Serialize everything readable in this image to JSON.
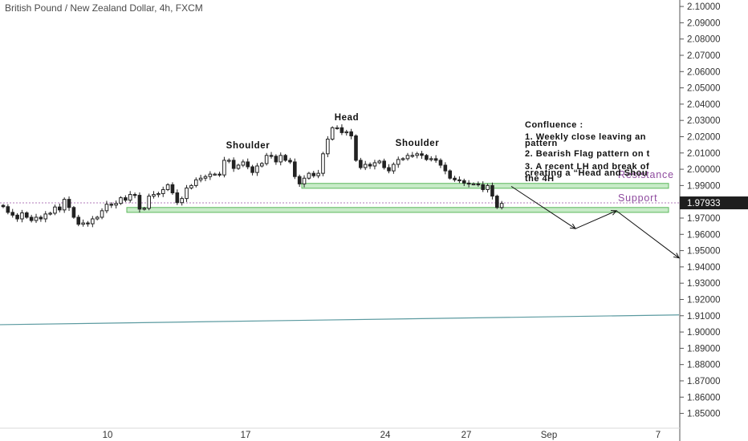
{
  "header": {
    "title": "British Pound / New Zealand Dollar, 4h, FXCM"
  },
  "colors": {
    "candle": "#222222",
    "zone_fill": "#c8ebc8",
    "zone_stroke": "#5cb85c",
    "support_text": "#8e4a9e",
    "trend_line": "#5b9aa0",
    "price_tag_bg": "#1e1e1e",
    "price_tag_text": "#ffffff",
    "axis_text": "#333333",
    "dotted_line": "#b07ab8"
  },
  "annotations": {
    "shoulder_left": "Shoulder",
    "head": "Head",
    "shoulder_right": "Shoulder",
    "support": "Support",
    "resistance": "Resistance"
  },
  "confluence": {
    "heading": "Confluence :",
    "line1a": "1. Weekly close leaving an",
    "line1b": "pattern",
    "line2": "2. Bearish Flag pattern on t",
    "line3a": "3. A recent LH and break of",
    "line3b": "creating a “Head and Shou",
    "line3c": "the 4H"
  },
  "price_tag": "1.97933",
  "chart_data": {
    "type": "candlestick",
    "title": "British Pound / New Zealand Dollar, 4h, FXCM",
    "ylim": [
      1.8425,
      2.1025
    ],
    "y_ticks": [
      "2.10000",
      "2.09000",
      "2.08000",
      "2.07000",
      "2.06000",
      "2.05000",
      "2.04000",
      "2.03000",
      "2.02000",
      "2.01000",
      "2.00000",
      "1.99000",
      "1.98000",
      "1.97000",
      "1.96000",
      "1.95000",
      "1.94000",
      "1.93000",
      "1.92000",
      "1.91000",
      "1.90000",
      "1.89000",
      "1.88000",
      "1.87000",
      "1.86000",
      "1.85000"
    ],
    "x_ticks": [
      "10",
      "17",
      "24",
      "27",
      "Sep",
      "7"
    ],
    "last_price": 1.97933,
    "support_zone": [
      1.9735,
      1.9765
    ],
    "resistance_zone": [
      1.9883,
      1.9913
    ],
    "trend_line": [
      [
        0,
        1.9045
      ],
      [
        1,
        1.9105
      ]
    ],
    "closes": [
      1.977,
      1.9735,
      1.9718,
      1.9695,
      1.9732,
      1.9705,
      1.9685,
      1.9705,
      1.9695,
      1.9725,
      1.973,
      1.9768,
      1.975,
      1.9815,
      1.9765,
      1.9705,
      1.9662,
      1.967,
      1.9665,
      1.9695,
      1.9705,
      1.9745,
      1.9785,
      1.978,
      1.979,
      1.9825,
      1.981,
      1.9845,
      1.984,
      1.9755,
      1.976,
      1.9835,
      1.9845,
      1.985,
      1.9875,
      1.9905,
      1.9855,
      1.9795,
      1.982,
      1.9885,
      1.99,
      1.9935,
      1.9945,
      1.9955,
      1.997,
      1.997,
      1.9965,
      2.0055,
      2.0055,
      2.0005,
      2.0025,
      2.0045,
      2.0015,
      1.998,
      2.002,
      2.0035,
      2.0085,
      2.008,
      2.0045,
      2.0085,
      2.0055,
      2.0045,
      1.9955,
      1.991,
      1.9945,
      1.9975,
      1.996,
      1.9975,
      2.0095,
      2.0185,
      2.0255,
      2.0255,
      2.0225,
      2.023,
      2.0205,
      2.0055,
      2.001,
      2.003,
      2.002,
      2.004,
      2.005,
      2.001,
      1.999,
      2.003,
      2.006,
      2.0065,
      2.0085,
      2.0085,
      2.0095,
      2.0085,
      2.006,
      2.0065,
      2.0055,
      2.0025,
      1.999,
      1.9945,
      1.9935,
      1.993,
      1.9915,
      1.991,
      1.991,
      1.9905,
      1.9875,
      1.99,
      1.9835,
      1.9765,
      1.979
    ],
    "projection": [
      [
        1.9895,
        1.9635
      ],
      [
        1.9635,
        1.9745
      ],
      [
        1.9745,
        1.9455
      ]
    ]
  }
}
